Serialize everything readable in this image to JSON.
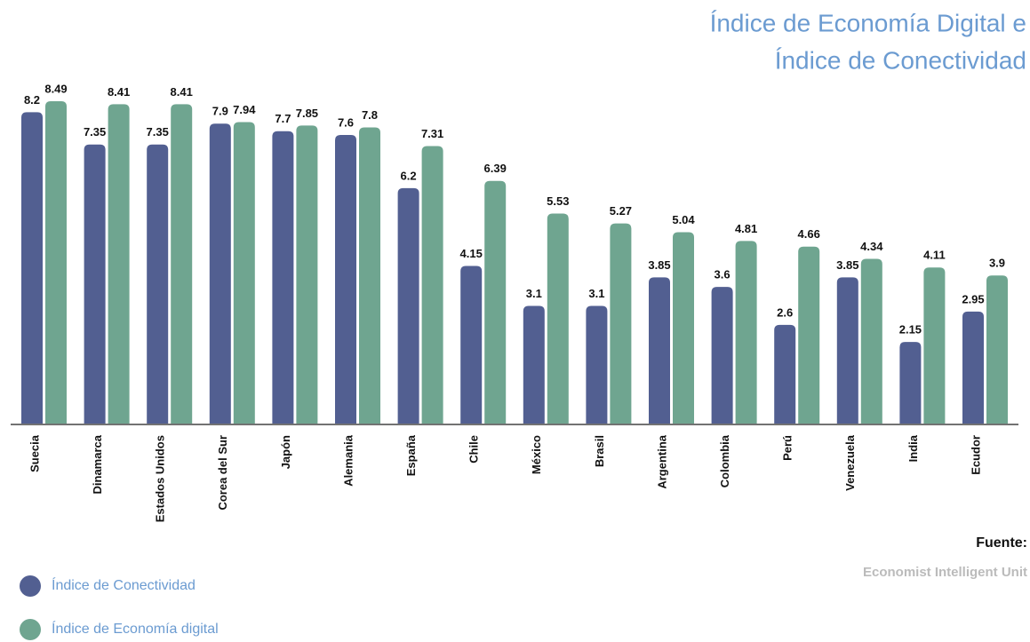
{
  "chart_data": {
    "type": "bar",
    "title": [
      "Índice de Economía Digital e",
      "Índice de Conectividad"
    ],
    "categories": [
      "Suecia",
      "Dinamarca",
      "Estados Unidos",
      "Corea del Sur",
      "Japón",
      "Alemania",
      "España",
      "Chile",
      "México",
      "Brasil",
      "Argentina",
      "Colombia",
      "Perú",
      "Venezuela",
      "India",
      "Ecudor"
    ],
    "series": [
      {
        "name": "Índice de Conectividad",
        "color": "#525f91",
        "values": [
          8.2,
          7.35,
          7.35,
          7.9,
          7.7,
          7.6,
          6.2,
          4.15,
          3.1,
          3.1,
          3.85,
          3.6,
          2.6,
          3.85,
          2.15,
          2.95
        ]
      },
      {
        "name": "Índice de Economía digital",
        "color": "#6fa590",
        "values": [
          8.49,
          8.41,
          8.41,
          7.94,
          7.85,
          7.8,
          7.31,
          6.39,
          5.53,
          5.27,
          5.04,
          4.81,
          4.66,
          4.34,
          4.11,
          3.9
        ]
      }
    ],
    "source_label": "Fuente:",
    "source": "Economist Intelligent Unit"
  }
}
